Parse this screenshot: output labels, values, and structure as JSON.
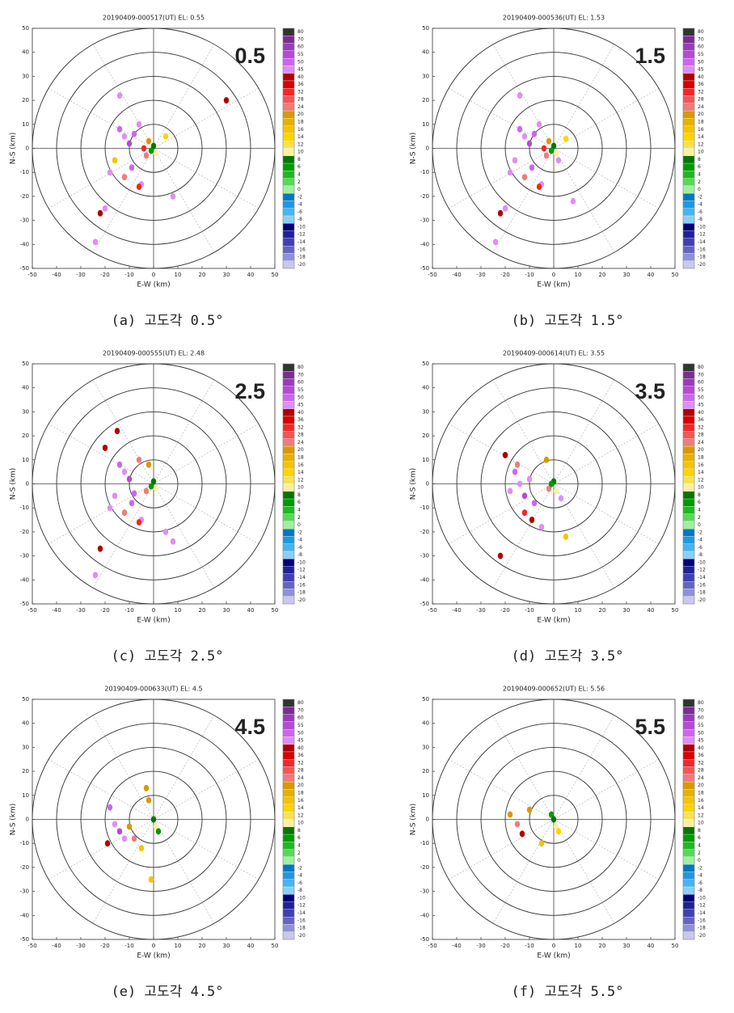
{
  "colorbar": {
    "levels": [
      80,
      70,
      60,
      55,
      50,
      45,
      40,
      36,
      32,
      28,
      24,
      20,
      18,
      16,
      14,
      12,
      10,
      8,
      6,
      4,
      2,
      0,
      -2,
      -4,
      -6,
      -8,
      -10,
      -12,
      -14,
      -16,
      -18,
      -20
    ],
    "colors": [
      "#333333",
      "#7b2d8f",
      "#9a3cb8",
      "#b64ad6",
      "#cc66ee",
      "#e08ef4",
      "#b00000",
      "#d80000",
      "#f02828",
      "#f05858",
      "#f07c7c",
      "#d89a00",
      "#e8b000",
      "#f4c400",
      "#ffd400",
      "#ffe050",
      "#fff0a0",
      "#007800",
      "#009a00",
      "#20b820",
      "#58d858",
      "#a0f0a0",
      "#0078c0",
      "#2098e0",
      "#48b4f0",
      "#88d0f8",
      "#000078",
      "#20209c",
      "#4040b0",
      "#6464c4",
      "#9090d8",
      "#c8c8ee"
    ]
  },
  "chart_data": [
    {
      "type": "ppi",
      "title": "20190409-000517(UT) EL: 0.55",
      "label": "0.5",
      "caption": "(a) 고도각 0.5°",
      "xlabel": "E-W (km)",
      "ylabel": "N-S (km)",
      "xlim": [
        -50,
        50
      ],
      "ylim": [
        -50,
        50
      ],
      "xticks": [
        -50,
        -40,
        -30,
        -20,
        -10,
        0,
        10,
        20,
        30,
        40,
        50
      ],
      "yticks": [
        -50,
        -40,
        -30,
        -20,
        -10,
        0,
        10,
        20,
        30,
        40,
        50
      ],
      "range_rings": [
        10,
        20,
        30,
        40,
        50
      ],
      "grid": true,
      "x": [
        -14,
        -12,
        -10,
        -8,
        -6,
        -4,
        -3,
        -2,
        0,
        1,
        -16,
        -18,
        -12,
        -9,
        -5,
        -20,
        -22,
        -24,
        5,
        8,
        -6,
        30,
        -14,
        -1
      ],
      "y": [
        8,
        5,
        2,
        6,
        10,
        0,
        -3,
        3,
        1,
        -2,
        -5,
        -10,
        -12,
        -8,
        -15,
        -25,
        -27,
        -39,
        5,
        -20,
        -16,
        20,
        22,
        -1
      ],
      "values": [
        50,
        45,
        55,
        50,
        45,
        32,
        24,
        20,
        8,
        10,
        16,
        45,
        24,
        50,
        45,
        45,
        40,
        45,
        14,
        45,
        32,
        40,
        45,
        6
      ]
    },
    {
      "type": "ppi",
      "title": "20190409-000536(UT) EL: 1.53",
      "label": "1.5",
      "caption": "(b) 고도각 1.5°",
      "xlabel": "E-W (km)",
      "ylabel": "N-S (km)",
      "xlim": [
        -50,
        50
      ],
      "ylim": [
        -50,
        50
      ],
      "xticks": [
        -50,
        -40,
        -30,
        -20,
        -10,
        0,
        10,
        20,
        30,
        40,
        50
      ],
      "yticks": [
        -50,
        -40,
        -30,
        -20,
        -10,
        0,
        10,
        20,
        30,
        40,
        50
      ],
      "range_rings": [
        10,
        20,
        30,
        40,
        50
      ],
      "grid": true,
      "x": [
        -14,
        -12,
        -10,
        -8,
        -6,
        -4,
        -3,
        -2,
        0,
        1,
        -16,
        -18,
        -12,
        -9,
        -5,
        -20,
        -22,
        -24,
        5,
        8,
        -6,
        -14,
        -1,
        2
      ],
      "y": [
        8,
        5,
        2,
        6,
        10,
        0,
        -3,
        3,
        1,
        -2,
        -5,
        -10,
        -12,
        -8,
        -15,
        -25,
        -27,
        -39,
        4,
        -22,
        -16,
        22,
        -1,
        -5
      ],
      "values": [
        50,
        45,
        55,
        50,
        45,
        32,
        24,
        20,
        8,
        10,
        45,
        45,
        24,
        50,
        45,
        45,
        40,
        45,
        14,
        45,
        32,
        45,
        6,
        45
      ]
    },
    {
      "type": "ppi",
      "title": "20190409-000555(UT) EL: 2.48",
      "label": "2.5",
      "caption": "(c) 고도각 2.5°",
      "xlabel": "E-W (km)",
      "ylabel": "N-S (km)",
      "xlim": [
        -50,
        50
      ],
      "ylim": [
        -50,
        50
      ],
      "xticks": [
        -50,
        -40,
        -30,
        -20,
        -10,
        0,
        10,
        20,
        30,
        40,
        50
      ],
      "yticks": [
        -50,
        -40,
        -30,
        -20,
        -10,
        0,
        10,
        20,
        30,
        40,
        50
      ],
      "range_rings": [
        10,
        20,
        30,
        40,
        50
      ],
      "grid": true,
      "x": [
        -14,
        -12,
        -10,
        -8,
        -6,
        -3,
        -2,
        0,
        1,
        -16,
        -18,
        -12,
        -9,
        -5,
        -22,
        -24,
        -15,
        5,
        8,
        -6,
        -20,
        -1
      ],
      "y": [
        8,
        5,
        2,
        -4,
        10,
        -3,
        8,
        1,
        -2,
        -5,
        -10,
        -12,
        -8,
        -15,
        -27,
        -38,
        22,
        -20,
        -24,
        -16,
        15,
        -1
      ],
      "values": [
        50,
        45,
        55,
        50,
        24,
        24,
        20,
        8,
        10,
        45,
        45,
        24,
        50,
        45,
        40,
        45,
        40,
        45,
        45,
        32,
        40,
        6
      ]
    },
    {
      "type": "ppi",
      "title": "20190409-000614(UT) EL: 3.55",
      "label": "3.5",
      "caption": "(d) 고도각 3.5°",
      "xlabel": "E-W (km)",
      "ylabel": "N-S (km)",
      "xlim": [
        -50,
        50
      ],
      "ylim": [
        -50,
        50
      ],
      "xticks": [
        -50,
        -40,
        -30,
        -20,
        -10,
        0,
        10,
        20,
        30,
        40,
        50
      ],
      "yticks": [
        -50,
        -40,
        -30,
        -20,
        -10,
        0,
        10,
        20,
        30,
        40,
        50
      ],
      "range_rings": [
        10,
        20,
        30,
        40,
        50
      ],
      "grid": true,
      "x": [
        -16,
        -14,
        -12,
        -10,
        -8,
        -3,
        -2,
        0,
        1,
        -18,
        -12,
        -9,
        -5,
        -22,
        5,
        -15,
        -1,
        3,
        -20
      ],
      "y": [
        5,
        0,
        -5,
        2,
        -8,
        10,
        -2,
        1,
        -3,
        -3,
        -12,
        -15,
        -18,
        -30,
        -22,
        8,
        0,
        -6,
        12
      ],
      "values": [
        50,
        45,
        55,
        45,
        50,
        20,
        24,
        8,
        10,
        45,
        32,
        40,
        45,
        40,
        16,
        24,
        6,
        45,
        40
      ]
    },
    {
      "type": "ppi",
      "title": "20190409-000633(UT) EL: 4.5",
      "label": "4.5",
      "caption": "(e) 고도각 4.5°",
      "xlabel": "E-W (km)",
      "ylabel": "N-S (km)",
      "xlim": [
        -50,
        50
      ],
      "ylim": [
        -50,
        50
      ],
      "xticks": [
        -50,
        -40,
        -30,
        -20,
        -10,
        0,
        10,
        20,
        30,
        40,
        50
      ],
      "yticks": [
        -50,
        -40,
        -30,
        -20,
        -10,
        0,
        10,
        20,
        30,
        40,
        50
      ],
      "range_rings": [
        10,
        20,
        30,
        40,
        50
      ],
      "grid": true,
      "x": [
        -18,
        -16,
        -14,
        -12,
        -2,
        0,
        1,
        -5,
        -1,
        -8,
        -10,
        2,
        -3,
        -19
      ],
      "y": [
        5,
        -2,
        -5,
        -8,
        8,
        0,
        -3,
        -12,
        -25,
        -8,
        -3,
        -5,
        13,
        -10
      ],
      "values": [
        50,
        45,
        55,
        45,
        20,
        8,
        10,
        16,
        16,
        24,
        20,
        6,
        20,
        40
      ]
    },
    {
      "type": "ppi",
      "title": "20190409-000652(UT) EL: 5.56",
      "label": "5.5",
      "caption": "(f) 고도각 5.5°",
      "xlabel": "E-W (km)",
      "ylabel": "N-S (km)",
      "xlim": [
        -50,
        50
      ],
      "ylim": [
        -50,
        50
      ],
      "xticks": [
        -50,
        -40,
        -30,
        -20,
        -10,
        0,
        10,
        20,
        30,
        40,
        50
      ],
      "yticks": [
        -50,
        -40,
        -30,
        -20,
        -10,
        0,
        10,
        20,
        30,
        40,
        50
      ],
      "range_rings": [
        10,
        20,
        30,
        40,
        50
      ],
      "grid": true,
      "x": [
        -15,
        -13,
        -18,
        0,
        1,
        -1,
        -5,
        2,
        -10
      ],
      "y": [
        -2,
        -6,
        2,
        0,
        -3,
        2,
        -10,
        -5,
        4
      ],
      "values": [
        24,
        40,
        20,
        8,
        10,
        6,
        16,
        14,
        20
      ]
    }
  ]
}
